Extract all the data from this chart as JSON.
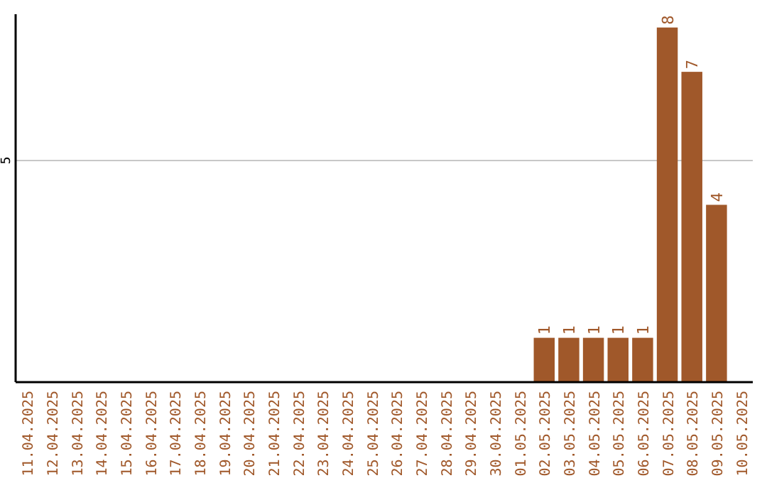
{
  "chart_data": {
    "type": "bar",
    "categories": [
      "11.04.2025",
      "12.04.2025",
      "13.04.2025",
      "14.04.2025",
      "15.04.2025",
      "16.04.2025",
      "17.04.2025",
      "18.04.2025",
      "19.04.2025",
      "20.04.2025",
      "21.04.2025",
      "22.04.2025",
      "23.04.2025",
      "24.04.2025",
      "25.04.2025",
      "26.04.2025",
      "27.04.2025",
      "28.04.2025",
      "29.04.2025",
      "30.04.2025",
      "01.05.2025",
      "02.05.2025",
      "03.05.2025",
      "04.05.2025",
      "05.05.2025",
      "06.05.2025",
      "07.05.2025",
      "08.05.2025",
      "09.05.2025",
      "10.05.2025"
    ],
    "values": [
      null,
      null,
      null,
      null,
      null,
      null,
      null,
      null,
      null,
      null,
      null,
      null,
      null,
      null,
      null,
      null,
      null,
      null,
      null,
      null,
      null,
      1,
      1,
      1,
      1,
      1,
      8,
      7,
      4,
      null
    ],
    "color": "#a0582a",
    "ylim": [
      0,
      8.3
    ],
    "yticks": [
      5
    ],
    "grid": "y",
    "data_labels": true
  }
}
